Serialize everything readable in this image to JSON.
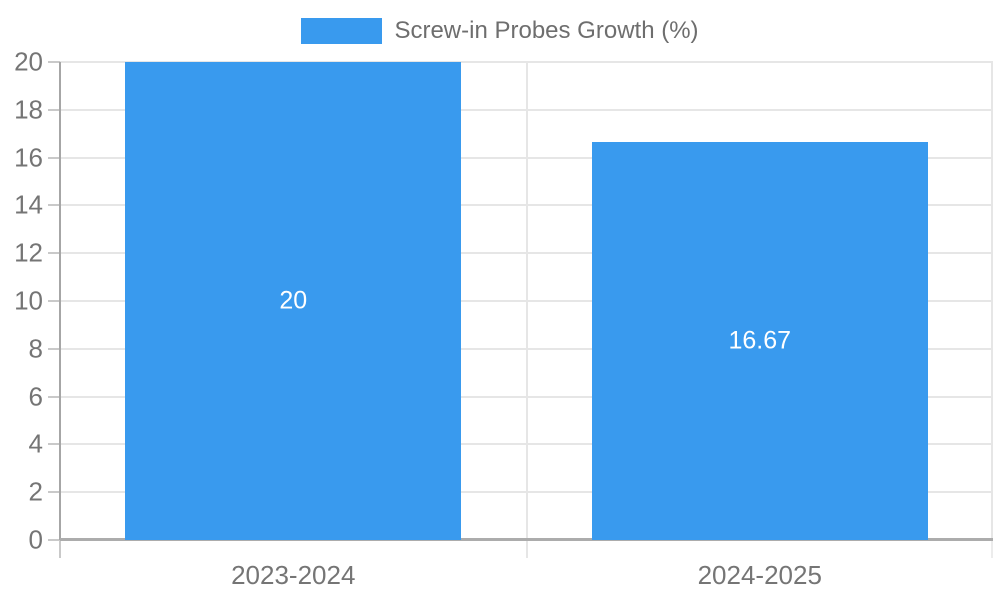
{
  "legend": {
    "label": "Screw-in Probes Growth (%)",
    "position": "top-center"
  },
  "chart_data": {
    "type": "bar",
    "title": "Screw-in Probes Growth (%)",
    "categories": [
      "2023-2024",
      "2024-2025"
    ],
    "values": [
      20,
      16.67
    ],
    "bar_labels": [
      "20",
      "16.67"
    ],
    "xlabel": "",
    "ylabel": "",
    "ylim": [
      0,
      20
    ],
    "yticks": [
      0,
      2,
      4,
      6,
      8,
      10,
      12,
      14,
      16,
      18,
      20
    ],
    "grid": true,
    "legend_position": "top"
  },
  "colors": {
    "bar": "#399AEE",
    "grid_line": "#E6E6E6",
    "y_axis_line": "#A6A6A6",
    "x_axis_line": "#ACACAC",
    "axis_tick": "#C9C9C9",
    "below_axis_separator_tick": "#E6E6E6",
    "right_edge_tick": "#ECECEC",
    "axis_text": "#757575",
    "legend_text": "#6E6E6E",
    "bar_label_text": "#FFFFFF",
    "background": "#FFFFFF"
  }
}
